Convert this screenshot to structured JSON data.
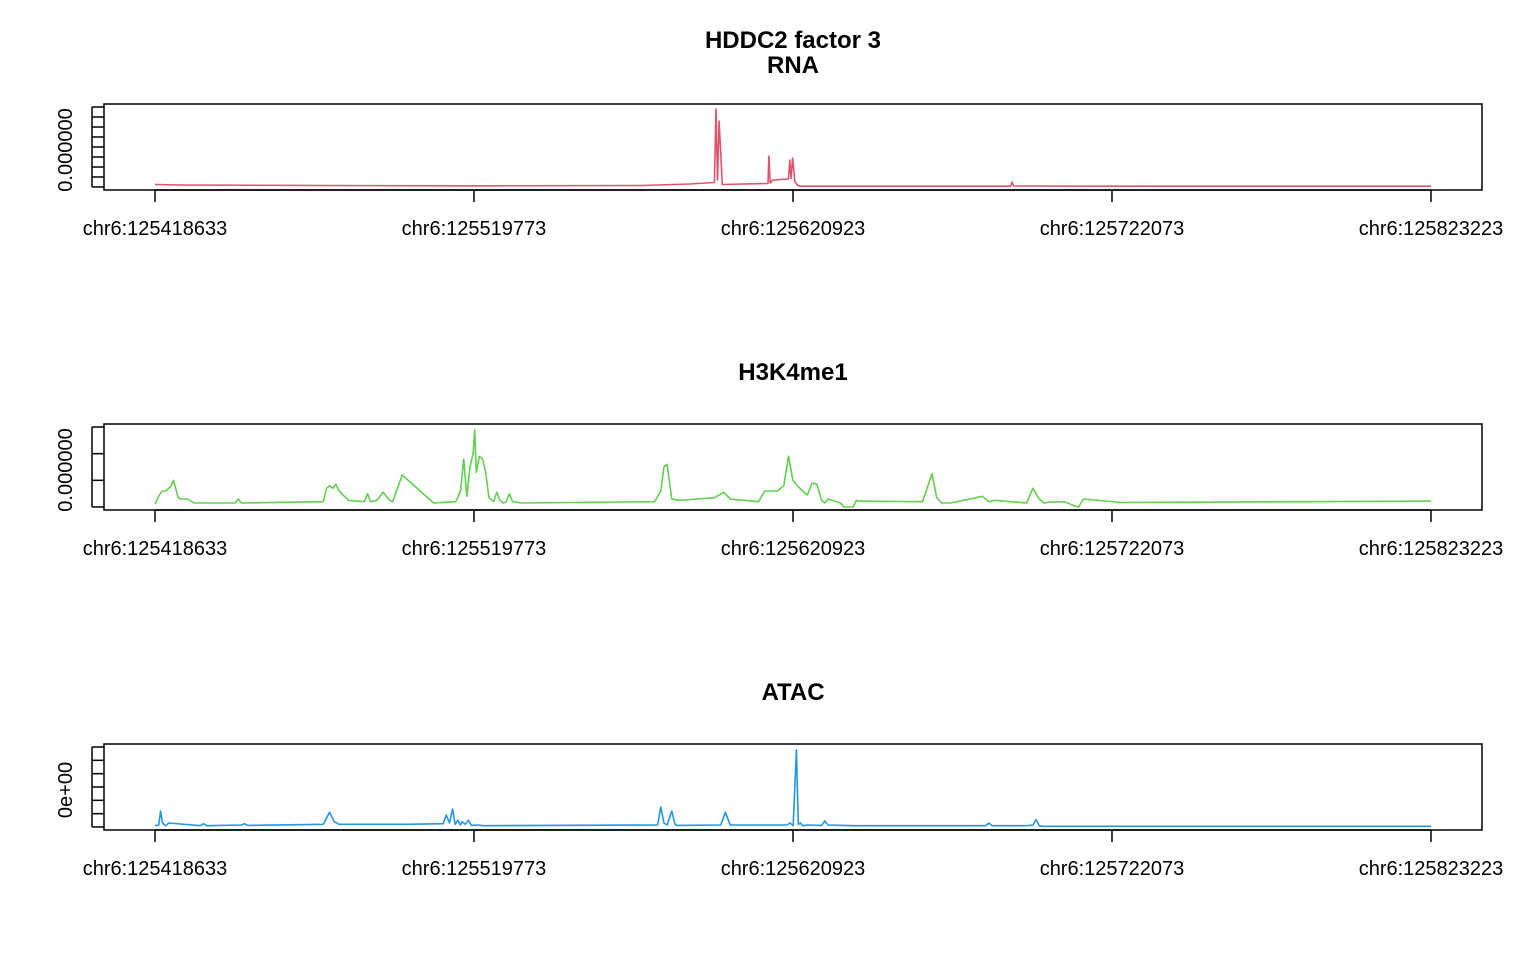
{
  "chart_data": {
    "type": "line",
    "title": "HDDC2 factor 3",
    "x_range": [
      125418633,
      125823223
    ],
    "x_ticks": [
      {
        "value": 125418633,
        "label": "chr6:125418633"
      },
      {
        "value": 125519773,
        "label": "chr6:125519773"
      },
      {
        "value": 125620923,
        "label": "chr6:125620923"
      },
      {
        "value": 125722073,
        "label": "chr6:125722073"
      },
      {
        "value": 125823223,
        "label": "chr6:125823223"
      }
    ],
    "grid": false,
    "panels": [
      {
        "name": "RNA",
        "color": "#DF536B",
        "y_tick_label": "0.000000",
        "y_range": [
          0,
          8
        ],
        "y_minor_ticks": 8,
        "series": {
          "x": [
            125418633,
            125427000,
            125472000,
            125520000,
            125573000,
            125588000,
            125596000,
            125596500,
            125597000,
            125597500,
            125598500,
            125613000,
            125613300,
            125613700,
            125614500,
            125619500,
            125619900,
            125620300,
            125620800,
            125621500,
            125622300,
            125623000,
            125640000,
            125690000,
            125690400,
            125690900,
            125740000,
            125823223
          ],
          "y": [
            0.25,
            0.2,
            0.15,
            0.12,
            0.15,
            0.3,
            0.45,
            7.8,
            0.7,
            6.6,
            0.25,
            0.35,
            3.1,
            0.4,
            0.7,
            0.8,
            2.7,
            0.85,
            2.9,
            0.55,
            0.2,
            0.08,
            0.08,
            0.08,
            0.5,
            0.1,
            0.08,
            0.08
          ]
        }
      },
      {
        "name": "H3K4me1",
        "color": "#61D04F",
        "y_tick_label": "0.000000",
        "y_range": [
          0,
          3
        ],
        "y_minor_ticks": 3,
        "series": {
          "x": [
            125418633,
            125420000,
            125421000,
            125422000,
            125423500,
            125424500,
            125426000,
            125427000,
            125429000,
            125431000,
            125444000,
            125445000,
            125446000,
            125472000,
            125473000,
            125474000,
            125475000,
            125476000,
            125477000,
            125480000,
            125485000,
            125486000,
            125487000,
            125489000,
            125491000,
            125493000,
            125494000,
            125497000,
            125507000,
            125514000,
            125515500,
            125516500,
            125517500,
            125518500,
            125519500,
            125520000,
            125520500,
            125521500,
            125522500,
            125523500,
            125524500,
            125526000,
            125527000,
            125528000,
            125529000,
            125530000,
            125531000,
            125532000,
            125535000,
            125577000,
            125579000,
            125580000,
            125581000,
            125582500,
            125585000,
            125596000,
            125599000,
            125601000,
            125610000,
            125612000,
            125616000,
            125618000,
            125619500,
            125620900,
            125622300,
            125624000,
            125625500,
            125627000,
            125628500,
            125630000,
            125631000,
            125632000,
            125636000,
            125637000,
            125640000,
            125641000,
            125642000,
            125662000,
            125665000,
            125666500,
            125668000,
            125671000,
            125681000,
            125683000,
            125685000,
            125695000,
            125697000,
            125699000,
            125700500,
            125702000,
            125707000,
            125710000,
            125711500,
            125713000,
            125725000,
            125823223
          ],
          "y": [
            0.1,
            0.45,
            0.6,
            0.6,
            0.75,
            1.0,
            0.35,
            0.3,
            0.3,
            0.15,
            0.15,
            0.3,
            0.15,
            0.2,
            0.7,
            0.8,
            0.7,
            0.85,
            0.6,
            0.25,
            0.2,
            0.5,
            0.2,
            0.25,
            0.55,
            0.25,
            0.2,
            1.2,
            0.15,
            0.2,
            0.6,
            1.8,
            0.4,
            1.5,
            2.0,
            2.9,
            1.3,
            1.9,
            1.8,
            1.3,
            0.35,
            0.2,
            0.55,
            0.25,
            0.15,
            0.2,
            0.5,
            0.2,
            0.15,
            0.2,
            0.6,
            1.5,
            1.6,
            0.3,
            0.25,
            0.35,
            0.55,
            0.3,
            0.2,
            0.6,
            0.6,
            0.8,
            1.9,
            1.0,
            0.8,
            0.6,
            0.45,
            0.9,
            0.85,
            0.25,
            0.15,
            0.3,
            0.15,
            0.0,
            0.0,
            0.25,
            0.22,
            0.2,
            1.25,
            0.35,
            0.15,
            0.15,
            0.4,
            0.2,
            0.25,
            0.15,
            0.7,
            0.3,
            0.15,
            0.18,
            0.2,
            0.05,
            0.0,
            0.3,
            0.17,
            0.22
          ]
        }
      },
      {
        "name": "ATAC",
        "color": "#2297E6",
        "y_tick_label": "0e+00",
        "y_range": [
          0,
          6
        ],
        "y_minor_ticks": 6,
        "series": {
          "x": [
            125418633,
            125419800,
            125420400,
            125421000,
            125422000,
            125423000,
            125433000,
            125434000,
            125435000,
            125446000,
            125447000,
            125448000,
            125472000,
            125474000,
            125475500,
            125477000,
            125498000,
            125510000,
            125511000,
            125512000,
            125513000,
            125513800,
            125514600,
            125515500,
            125516000,
            125517000,
            125518000,
            125519000,
            125521000,
            125522000,
            125523000,
            125578000,
            125579000,
            125580000,
            125581000,
            125582500,
            125583500,
            125584000,
            125598000,
            125599500,
            125601000,
            125619000,
            125620000,
            125621000,
            125622000,
            125622600,
            125623300,
            125624000,
            125625500,
            125630000,
            125631000,
            125632000,
            125640000,
            125682000,
            125683000,
            125684000,
            125695000,
            125697000,
            125698000,
            125699000,
            125700000,
            125823223
          ],
          "y": [
            0.1,
            0.15,
            1.2,
            0.3,
            0.1,
            0.3,
            0.1,
            0.25,
            0.1,
            0.15,
            0.25,
            0.12,
            0.2,
            1.1,
            0.4,
            0.2,
            0.2,
            0.25,
            0.9,
            0.3,
            1.35,
            0.2,
            0.5,
            0.15,
            0.4,
            0.2,
            0.5,
            0.12,
            0.15,
            0.12,
            0.1,
            0.15,
            1.5,
            0.3,
            0.15,
            1.2,
            0.2,
            0.12,
            0.15,
            1.1,
            0.15,
            0.15,
            0.3,
            0.1,
            5.8,
            0.2,
            0.3,
            0.1,
            0.15,
            0.12,
            0.45,
            0.15,
            0.1,
            0.1,
            0.3,
            0.1,
            0.1,
            0.15,
            0.55,
            0.1,
            0.05,
            0.05
          ]
        }
      }
    ]
  }
}
